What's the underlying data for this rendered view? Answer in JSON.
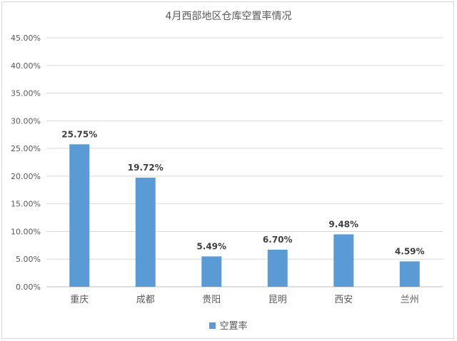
{
  "chart_data": {
    "type": "bar",
    "title": "4月西部地区仓库空置率情况",
    "categories": [
      "重庆",
      "成都",
      "贵阳",
      "昆明",
      "西安",
      "兰州"
    ],
    "series": [
      {
        "name": "空置率",
        "values": [
          25.75,
          19.72,
          5.49,
          6.7,
          9.48,
          4.59
        ],
        "color": "#5b9bd5"
      }
    ],
    "data_labels": [
      "25.75%",
      "19.72%",
      "5.49%",
      "6.70%",
      "9.48%",
      "4.59%"
    ],
    "ylim": [
      0,
      45
    ],
    "yticks": [
      "0.00%",
      "5.00%",
      "10.00%",
      "15.00%",
      "20.00%",
      "25.00%",
      "30.00%",
      "35.00%",
      "40.00%",
      "45.00%"
    ],
    "grid": true,
    "legend_position": "bottom",
    "xlabel": "",
    "ylabel": ""
  }
}
